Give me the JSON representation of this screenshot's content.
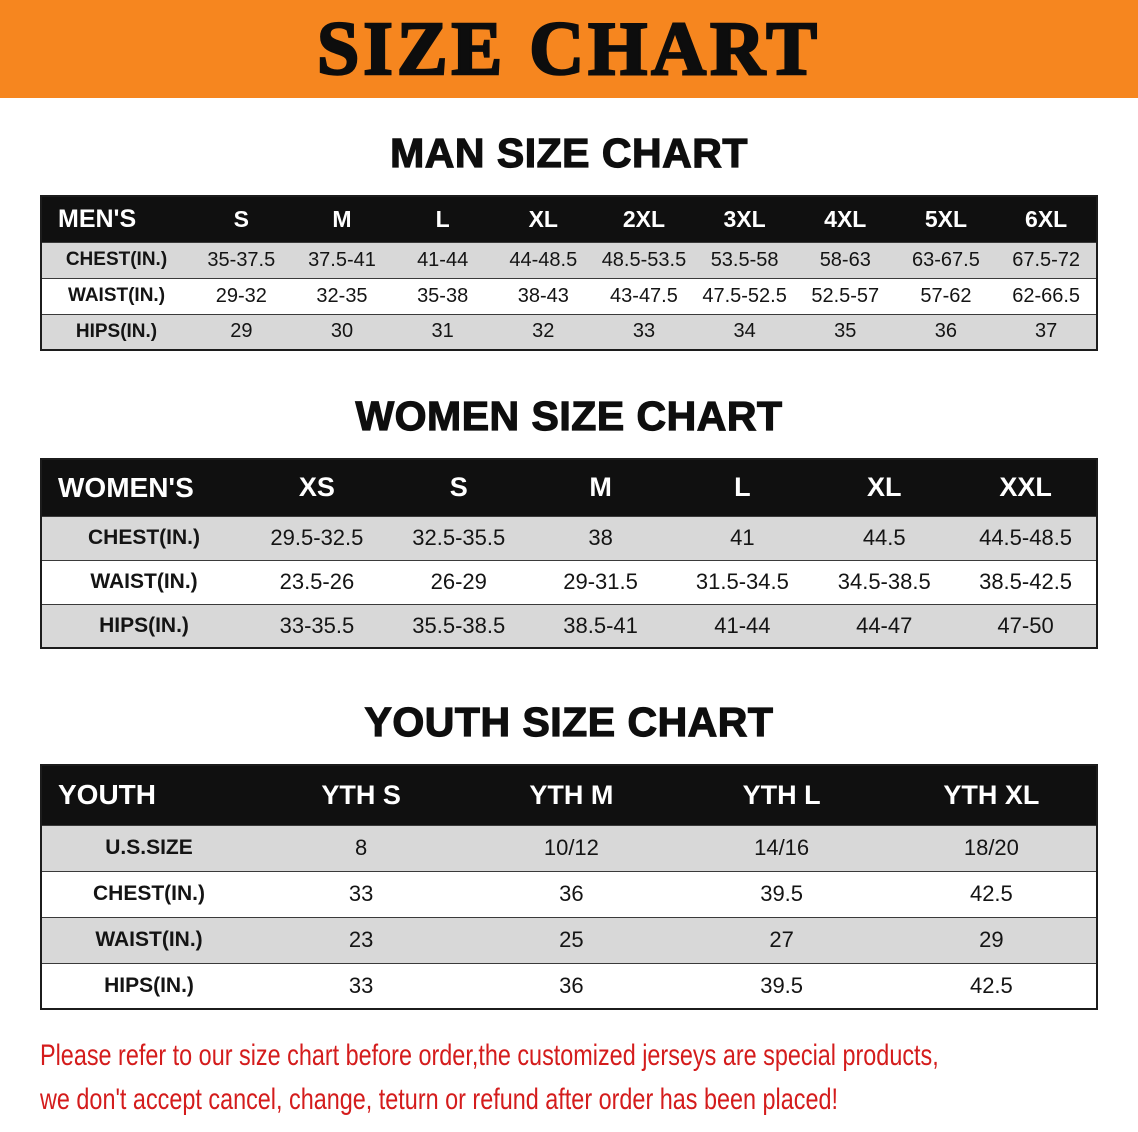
{
  "banner": {
    "title": "SIZE CHART"
  },
  "sections": {
    "men": {
      "heading": "MAN SIZE CHART",
      "table": {
        "header": [
          "MEN'S",
          "S",
          "M",
          "L",
          "XL",
          "2XL",
          "3XL",
          "4XL",
          "5XL",
          "6XL"
        ],
        "rows": [
          [
            "CHEST(IN.)",
            "35-37.5",
            "37.5-41",
            "41-44",
            "44-48.5",
            "48.5-53.5",
            "53.5-58",
            "58-63",
            "63-67.5",
            "67.5-72"
          ],
          [
            "WAIST(IN.)",
            "29-32",
            "32-35",
            "35-38",
            "38-43",
            "43-47.5",
            "47.5-52.5",
            "52.5-57",
            "57-62",
            "62-66.5"
          ],
          [
            "HIPS(IN.)",
            "29",
            "30",
            "31",
            "32",
            "33",
            "34",
            "35",
            "36",
            "37"
          ]
        ]
      }
    },
    "women": {
      "heading": "WOMEN SIZE CHART",
      "table": {
        "header": [
          "WOMEN'S",
          "XS",
          "S",
          "M",
          "L",
          "XL",
          "XXL"
        ],
        "rows": [
          [
            "CHEST(IN.)",
            "29.5-32.5",
            "32.5-35.5",
            "38",
            "41",
            "44.5",
            "44.5-48.5"
          ],
          [
            "WAIST(IN.)",
            "23.5-26",
            "26-29",
            "29-31.5",
            "31.5-34.5",
            "34.5-38.5",
            "38.5-42.5"
          ],
          [
            "HIPS(IN.)",
            "33-35.5",
            "35.5-38.5",
            "38.5-41",
            "41-44",
            "44-47",
            "47-50"
          ]
        ]
      }
    },
    "youth": {
      "heading": "YOUTH SIZE CHART",
      "table": {
        "header": [
          "YOUTH",
          "YTH S",
          "YTH M",
          "YTH L",
          "YTH XL"
        ],
        "rows": [
          [
            "U.S.SIZE",
            "8",
            "10/12",
            "14/16",
            "18/20"
          ],
          [
            "CHEST(IN.)",
            "33",
            "36",
            "39.5",
            "42.5"
          ],
          [
            "WAIST(IN.)",
            "23",
            "25",
            "27",
            "29"
          ],
          [
            "HIPS(IN.)",
            "33",
            "36",
            "39.5",
            "42.5"
          ]
        ]
      }
    }
  },
  "disclaimer": {
    "line1": "Please refer to our size chart before order,the customized jerseys are special products,",
    "line2": "we don't accept cancel, change, teturn or refund after order has been placed!"
  },
  "colors": {
    "banner_orange": "#f6861f",
    "header_black": "#101010",
    "row_gray": "#d8d8d8",
    "row_white": "#ffffff",
    "disclaimer_red": "#d41c1c"
  }
}
